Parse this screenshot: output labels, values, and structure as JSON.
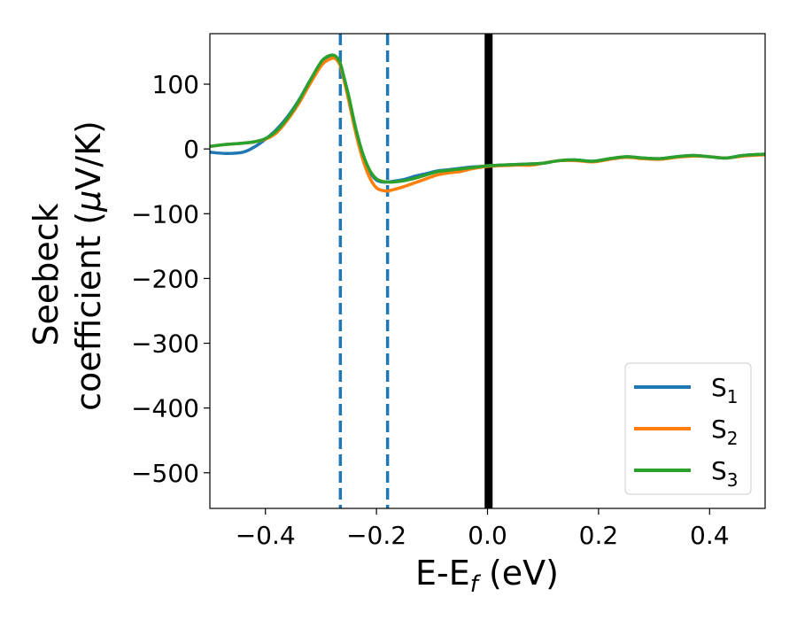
{
  "chart_data": {
    "type": "line",
    "xlabel": {
      "main": "E-E",
      "sub": "f",
      "unit": " (eV)"
    },
    "ylabel": {
      "line1": "Seebeck",
      "line2_main": "coefficient  (",
      "line2_mu": "μ",
      "line2_unit": "V/K)"
    },
    "xlim": [
      -0.5,
      0.5
    ],
    "ylim": [
      -555,
      178
    ],
    "xticks": [
      {
        "value": -0.4,
        "label": "−0.4"
      },
      {
        "value": -0.2,
        "label": "−0.2"
      },
      {
        "value": 0.0,
        "label": "0.0"
      },
      {
        "value": 0.2,
        "label": "0.2"
      },
      {
        "value": 0.4,
        "label": "0.4"
      }
    ],
    "yticks": [
      {
        "value": 100,
        "label": "100"
      },
      {
        "value": 0,
        "label": "0"
      },
      {
        "value": -100,
        "label": "−100"
      },
      {
        "value": -200,
        "label": "−200"
      },
      {
        "value": -300,
        "label": "−300"
      },
      {
        "value": -400,
        "label": "−400"
      },
      {
        "value": -500,
        "label": "−500"
      }
    ],
    "vlines": [
      {
        "x": -0.265,
        "style": "dashed",
        "color": "#1f77b4"
      },
      {
        "x": -0.18,
        "style": "dashed",
        "color": "#1f77b4"
      },
      {
        "x": 0.002,
        "style": "solid",
        "color": "#000000"
      }
    ],
    "legend_position": "bottom-right",
    "series": [
      {
        "name": "S",
        "sub": "1",
        "color": "#1f77b4",
        "x": [
          -0.5,
          -0.47,
          -0.44,
          -0.42,
          -0.4,
          -0.38,
          -0.36,
          -0.34,
          -0.32,
          -0.3,
          -0.29,
          -0.28,
          -0.275,
          -0.27,
          -0.265,
          -0.26,
          -0.25,
          -0.24,
          -0.23,
          -0.22,
          -0.21,
          -0.2,
          -0.19,
          -0.18,
          -0.17,
          -0.15,
          -0.13,
          -0.11,
          -0.09,
          -0.07,
          -0.05,
          -0.03,
          -0.01,
          0.0,
          0.02,
          0.05,
          0.08,
          0.1,
          0.13,
          0.16,
          0.19,
          0.22,
          0.25,
          0.28,
          0.31,
          0.34,
          0.37,
          0.4,
          0.43,
          0.46,
          0.5
        ],
        "y": [
          -5,
          -7,
          -5,
          3,
          15,
          30,
          50,
          75,
          105,
          132,
          140,
          143,
          142,
          138,
          130,
          115,
          80,
          40,
          5,
          -20,
          -38,
          -48,
          -51,
          -51,
          -50,
          -47,
          -42,
          -38,
          -34,
          -32,
          -30,
          -28,
          -27,
          -26,
          -25,
          -24,
          -23,
          -22,
          -18,
          -17,
          -19,
          -15,
          -12,
          -14,
          -15,
          -12,
          -10,
          -12,
          -14,
          -10,
          -8
        ]
      },
      {
        "name": "S",
        "sub": "2",
        "color": "#ff7f0e",
        "x": [
          -0.5,
          -0.47,
          -0.44,
          -0.42,
          -0.4,
          -0.38,
          -0.36,
          -0.34,
          -0.32,
          -0.3,
          -0.29,
          -0.28,
          -0.275,
          -0.27,
          -0.265,
          -0.26,
          -0.25,
          -0.24,
          -0.23,
          -0.22,
          -0.21,
          -0.2,
          -0.19,
          -0.18,
          -0.17,
          -0.15,
          -0.13,
          -0.11,
          -0.09,
          -0.07,
          -0.05,
          -0.03,
          -0.01,
          0.0,
          0.02,
          0.05,
          0.08,
          0.1,
          0.13,
          0.16,
          0.19,
          0.22,
          0.25,
          0.28,
          0.31,
          0.34,
          0.37,
          0.4,
          0.43,
          0.46,
          0.5
        ],
        "y": [
          4,
          7,
          9,
          11,
          15,
          25,
          45,
          70,
          100,
          128,
          136,
          140,
          140,
          136,
          128,
          112,
          75,
          35,
          0,
          -28,
          -48,
          -60,
          -64,
          -65,
          -63,
          -58,
          -52,
          -46,
          -40,
          -37,
          -35,
          -31,
          -28,
          -27,
          -26,
          -25,
          -25,
          -22,
          -18,
          -18,
          -20,
          -16,
          -13,
          -15,
          -16,
          -13,
          -11,
          -12,
          -14,
          -11,
          -9
        ]
      },
      {
        "name": "S",
        "sub": "3",
        "color": "#2ca02c",
        "x": [
          -0.5,
          -0.47,
          -0.44,
          -0.42,
          -0.4,
          -0.38,
          -0.36,
          -0.34,
          -0.32,
          -0.3,
          -0.29,
          -0.28,
          -0.275,
          -0.27,
          -0.265,
          -0.26,
          -0.25,
          -0.24,
          -0.23,
          -0.22,
          -0.21,
          -0.2,
          -0.19,
          -0.18,
          -0.17,
          -0.15,
          -0.13,
          -0.11,
          -0.09,
          -0.07,
          -0.05,
          -0.03,
          -0.01,
          0.0,
          0.02,
          0.05,
          0.08,
          0.1,
          0.13,
          0.16,
          0.19,
          0.22,
          0.25,
          0.28,
          0.31,
          0.34,
          0.37,
          0.4,
          0.43,
          0.46,
          0.5
        ],
        "y": [
          4,
          7,
          9,
          11,
          16,
          28,
          48,
          74,
          105,
          134,
          142,
          145,
          144,
          140,
          132,
          116,
          82,
          42,
          8,
          -18,
          -36,
          -46,
          -50,
          -51,
          -51,
          -49,
          -45,
          -40,
          -35,
          -33,
          -31,
          -29,
          -27,
          -26,
          -25,
          -24,
          -23,
          -22,
          -18,
          -17,
          -19,
          -15,
          -12,
          -14,
          -15,
          -12,
          -10,
          -12,
          -14,
          -10,
          -8
        ]
      }
    ]
  }
}
